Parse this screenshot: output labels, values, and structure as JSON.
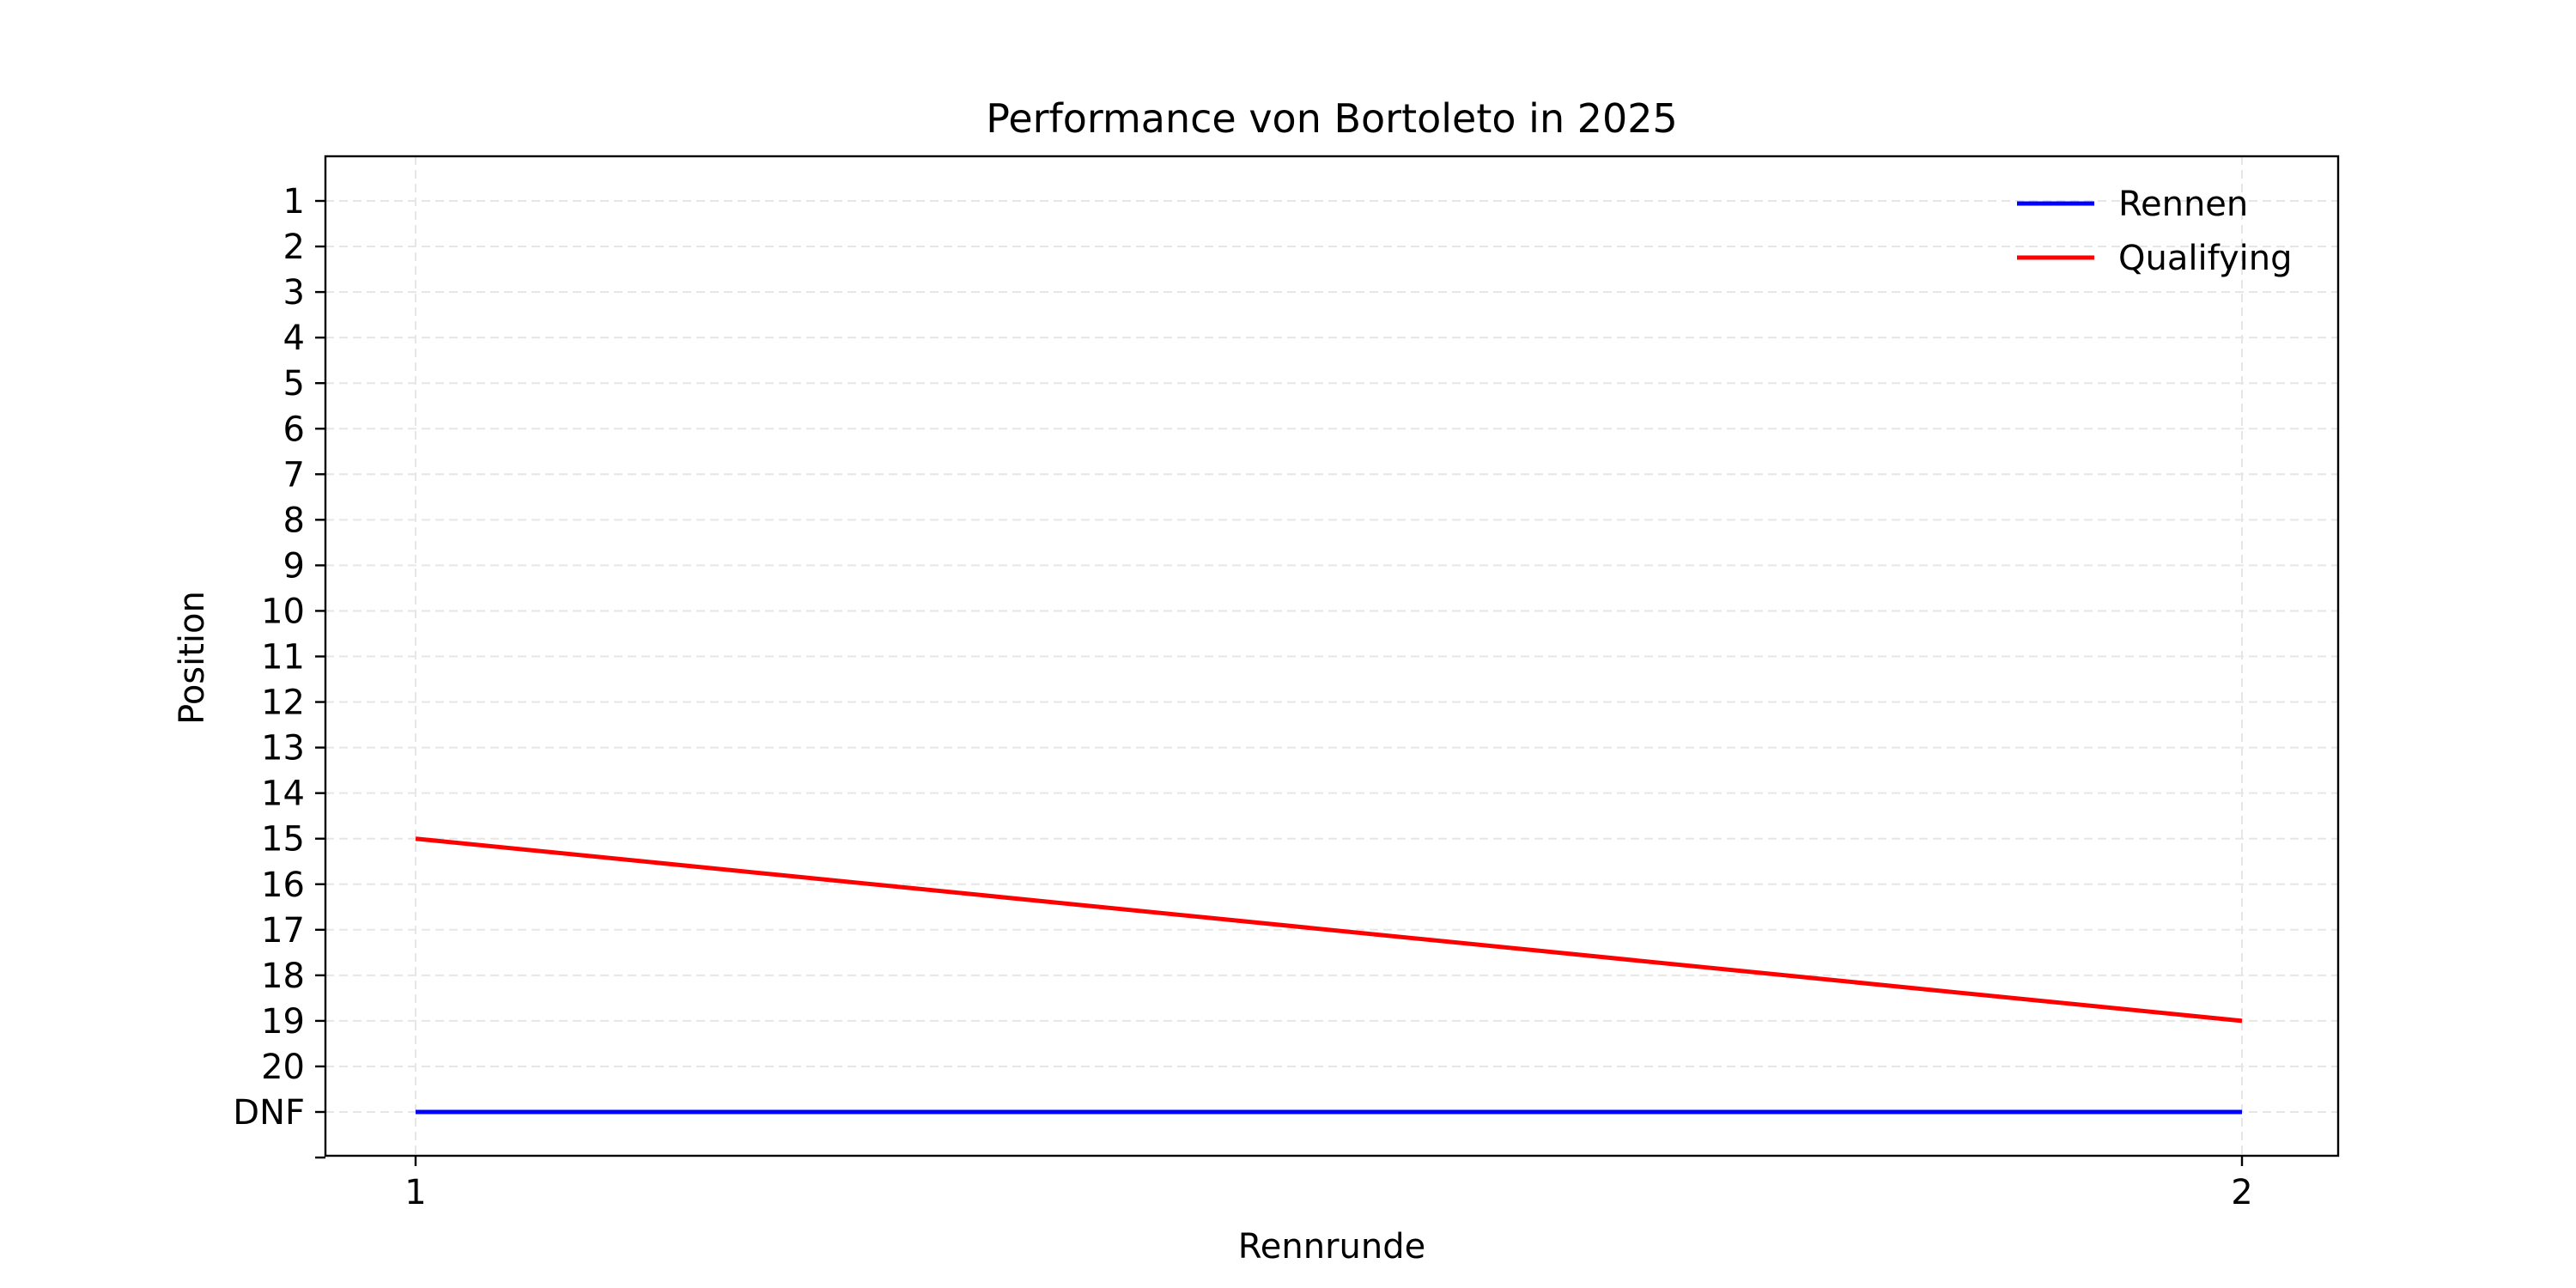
{
  "chart_data": {
    "type": "line",
    "title": "Performance von Bortoleto in 2025",
    "xlabel": "Rennrunde",
    "ylabel": "Position",
    "x": [
      1,
      2
    ],
    "x_ticks": [
      "1",
      "2"
    ],
    "y_ticks": [
      "1",
      "2",
      "3",
      "4",
      "5",
      "6",
      "7",
      "8",
      "9",
      "10",
      "11",
      "12",
      "13",
      "14",
      "15",
      "16",
      "17",
      "18",
      "19",
      "20",
      "DNF"
    ],
    "y_inverted": true,
    "series": [
      {
        "name": "Rennen",
        "color": "#0000ff",
        "values": [
          "DNF",
          "DNF"
        ]
      },
      {
        "name": "Qualifying",
        "color": "#ff0000",
        "values": [
          15,
          19
        ]
      }
    ],
    "grid": true,
    "legend_position": "top-right"
  }
}
